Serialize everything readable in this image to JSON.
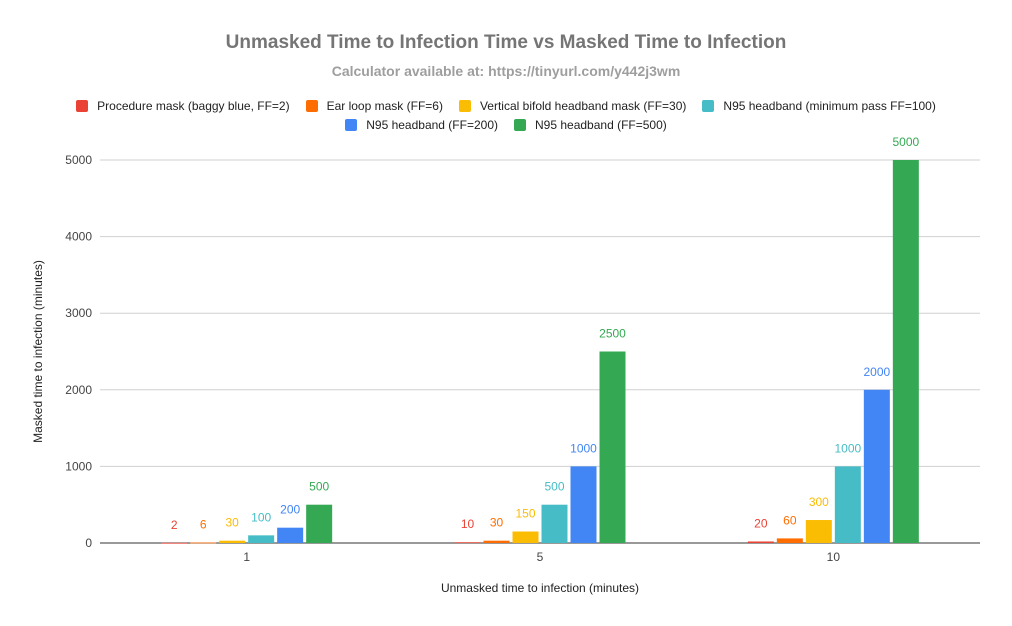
{
  "chart_data": {
    "type": "bar",
    "title": "Unmasked Time to Infection Time vs Masked Time to Infection",
    "subtitle": "Calculator available at: https://tinyurl.com/y442j3wm",
    "xlabel": "Unmasked time to infection (minutes)",
    "ylabel": "Masked time to infection (minutes)",
    "categories": [
      "1",
      "5",
      "10"
    ],
    "ylim": [
      0,
      5000
    ],
    "yticks": [
      0,
      1000,
      2000,
      3000,
      4000,
      5000
    ],
    "grid": true,
    "legend_position": "top",
    "series": [
      {
        "name": "Procedure mask (baggy blue, FF=2)",
        "color": "#ea4335",
        "values": [
          2,
          10,
          20
        ]
      },
      {
        "name": "Ear loop mask (FF=6)",
        "color": "#ff6d01",
        "values": [
          6,
          30,
          60
        ]
      },
      {
        "name": "Vertical bifold headband mask (FF=30)",
        "color": "#fbbc04",
        "values": [
          30,
          150,
          300
        ]
      },
      {
        "name": "N95 headband (minimum pass FF=100)",
        "color": "#46bdc6",
        "values": [
          100,
          500,
          1000
        ]
      },
      {
        "name": "N95 headband (FF=200)",
        "color": "#4285f4",
        "values": [
          200,
          1000,
          2000
        ]
      },
      {
        "name": "N95 headband (FF=500)",
        "color": "#34a853",
        "values": [
          500,
          2500,
          5000
        ]
      }
    ]
  }
}
